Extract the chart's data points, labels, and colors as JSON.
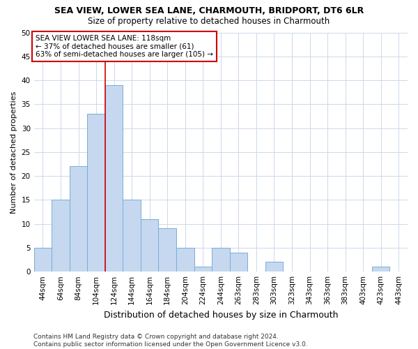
{
  "title": "SEA VIEW, LOWER SEA LANE, CHARMOUTH, BRIDPORT, DT6 6LR",
  "subtitle": "Size of property relative to detached houses in Charmouth",
  "xlabel": "Distribution of detached houses by size in Charmouth",
  "ylabel": "Number of detached properties",
  "categories": [
    "44sqm",
    "64sqm",
    "84sqm",
    "104sqm",
    "124sqm",
    "144sqm",
    "164sqm",
    "184sqm",
    "204sqm",
    "224sqm",
    "244sqm",
    "263sqm",
    "283sqm",
    "303sqm",
    "323sqm",
    "343sqm",
    "363sqm",
    "383sqm",
    "403sqm",
    "423sqm",
    "443sqm"
  ],
  "values": [
    5,
    15,
    22,
    33,
    39,
    15,
    11,
    9,
    5,
    1,
    5,
    4,
    0,
    2,
    0,
    0,
    0,
    0,
    0,
    1,
    0
  ],
  "bar_color": "#c5d8f0",
  "bar_edge_color": "#7aadd4",
  "vline_x_idx": 3.5,
  "vline_color": "#cc0000",
  "annotation_line1": "SEA VIEW LOWER SEA LANE: 118sqm",
  "annotation_line2": "← 37% of detached houses are smaller (61)",
  "annotation_line3": "63% of semi-detached houses are larger (105) →",
  "annotation_box_color": "#ffffff",
  "annotation_box_edge": "#cc0000",
  "ylim": [
    0,
    50
  ],
  "yticks": [
    0,
    5,
    10,
    15,
    20,
    25,
    30,
    35,
    40,
    45,
    50
  ],
  "footer": "Contains HM Land Registry data © Crown copyright and database right 2024.\nContains public sector information licensed under the Open Government Licence v3.0.",
  "bg_color": "#ffffff",
  "grid_color": "#cdd8ea",
  "title_fontsize": 9,
  "subtitle_fontsize": 8.5,
  "ylabel_fontsize": 8,
  "xlabel_fontsize": 9,
  "tick_fontsize": 7.5,
  "annotation_fontsize": 7.5,
  "footer_fontsize": 6.5
}
